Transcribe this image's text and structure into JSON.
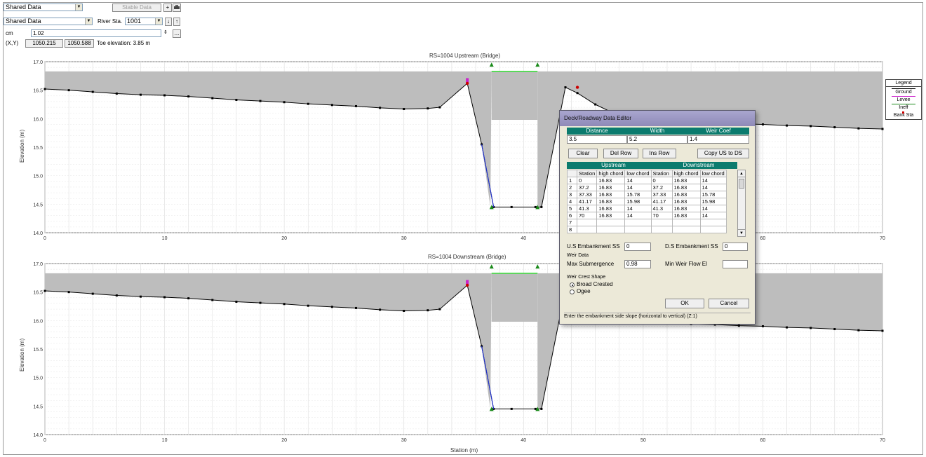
{
  "toolbar": {
    "combo1": "Shared Data",
    "combo2": "Shared Data",
    "combo3": "1001",
    "rs_disabled_btn": "Stable Data",
    "rs_label": "River Sta.",
    "left_label": "cm",
    "left_value": "1.02",
    "xy_label": "(X,Y)",
    "x_value": "1050.215",
    "y_value": "1050.588",
    "info_text": "Toe elevation: 3.85 m",
    "plus_btn": "+",
    "down_btn": "↓",
    "up_btn": "↑",
    "dots_btn": "..."
  },
  "top_chart": {
    "title": "RS=1004 Upstream (Bridge)",
    "ylabel": "Elevation (m)",
    "yticks": [
      "17.0",
      "16.5",
      "16.0",
      "15.5",
      "15.0",
      "14.5",
      "14.0"
    ],
    "xticks": [
      "0",
      "10",
      "20",
      "30",
      "40",
      "50",
      "60",
      "70"
    ]
  },
  "bottom_chart": {
    "title": "RS=1004 Downstream (Bridge)",
    "ylabel": "Elevation (m)",
    "xlabel": "Station (m)",
    "yticks": [
      "17.0",
      "16.5",
      "16.0",
      "15.5",
      "15.0",
      "14.5",
      "14.0"
    ],
    "xticks": [
      "0",
      "10",
      "20",
      "30",
      "40",
      "50",
      "60",
      "70"
    ]
  },
  "legend": {
    "title": "Legend",
    "items": [
      {
        "label": "Ground",
        "color": "#000000"
      },
      {
        "label": "Levee",
        "color": "#cc22cc"
      },
      {
        "label": "Ineff",
        "color": "#1a8a1a"
      },
      {
        "label": "Bank Sta",
        "color": "#cc0000"
      }
    ]
  },
  "dialog": {
    "title": "Deck/Roadway Data Editor",
    "hdr_distance": "Distance",
    "hdr_width": "Width",
    "hdr_weir": "Weir Coef",
    "val_distance": "3.5",
    "val_width": "5.2",
    "val_weir": "1.4",
    "btn_clear": "Clear",
    "btn_delrow": "Del Row",
    "btn_insrow": "Ins Row",
    "btn_copy": "Copy US to DS",
    "hdr_upstream": "Upstream",
    "hdr_downstream": "Downstream",
    "col_headers": [
      "",
      "Station",
      "high chord",
      "low chord",
      "Station",
      "high chord",
      "low chord"
    ],
    "rows": [
      [
        "1",
        "0",
        "16.83",
        "14",
        "0",
        "16.83",
        "14"
      ],
      [
        "2",
        "37.2",
        "16.83",
        "14",
        "37.2",
        "16.83",
        "14"
      ],
      [
        "3",
        "37.33",
        "16.83",
        "15.78",
        "37.33",
        "16.83",
        "15.78"
      ],
      [
        "4",
        "41.17",
        "16.83",
        "15.98",
        "41.17",
        "16.83",
        "15.98"
      ],
      [
        "5",
        "41.3",
        "16.83",
        "14",
        "41.3",
        "16.83",
        "14"
      ],
      [
        "6",
        "70",
        "16.83",
        "14",
        "70",
        "16.83",
        "14"
      ],
      [
        "7",
        "",
        "",
        "",
        "",
        "",
        ""
      ],
      [
        "8",
        "",
        "",
        "",
        "",
        "",
        ""
      ]
    ],
    "us_emb_label": "U.S Embankment SS",
    "us_emb_value": "0",
    "ds_emb_label": "D.S Embankment SS",
    "ds_emb_value": "0",
    "weir_data_label": "Weir Data",
    "max_sub_label": "Max Submergence",
    "max_sub_value": "0.98",
    "min_weir_label": "Min Weir Flow El",
    "min_weir_value": "",
    "weir_shape_label": "Weir Crest Shape",
    "radio_broad": "Broad Crested",
    "radio_ogee": "Ogee",
    "btn_ok": "OK",
    "btn_cancel": "Cancel",
    "status": "Enter the embankment side slope (horizontal to vertical) (Z:1)"
  },
  "chart_data": [
    {
      "type": "line",
      "title": "RS=1004 Upstream (Bridge)",
      "xlabel": "",
      "ylabel": "Elevation (m)",
      "xlim": [
        0,
        70
      ],
      "ylim": [
        14.0,
        17.0
      ],
      "grid": true,
      "legend": "right",
      "deck": {
        "high_chord": 16.83,
        "low_chord": 14.0,
        "opening_low_chord": 15.98,
        "opening_x": [
          37.33,
          41.17
        ]
      },
      "series": [
        {
          "name": "Ground",
          "x": [
            0,
            2,
            4,
            6,
            8,
            10,
            12,
            14,
            16,
            18,
            20,
            22,
            24,
            26,
            28,
            30,
            32,
            33,
            35.3,
            36.5,
            37.5,
            39,
            41,
            41.5,
            43.5,
            44.5,
            46,
            48,
            50,
            52,
            54,
            56,
            58,
            60,
            62,
            64,
            66,
            68,
            70
          ],
          "y": [
            16.52,
            16.5,
            16.47,
            16.44,
            16.42,
            16.41,
            16.39,
            16.36,
            16.33,
            16.31,
            16.29,
            16.26,
            16.24,
            16.22,
            16.19,
            16.17,
            16.18,
            16.2,
            16.62,
            15.55,
            14.45,
            14.45,
            14.45,
            14.45,
            16.55,
            16.45,
            16.25,
            16.05,
            15.98,
            15.96,
            15.94,
            15.93,
            15.91,
            15.9,
            15.88,
            15.87,
            15.85,
            15.83,
            15.82
          ]
        },
        {
          "name": "Levee",
          "x": [
            35.3
          ],
          "y": [
            16.65
          ]
        },
        {
          "name": "Ineff",
          "x": [
            37.33,
            41.17
          ],
          "y": [
            16.83,
            16.83
          ]
        },
        {
          "name": "Bank Sta",
          "x": [
            35.3,
            44.5
          ],
          "y": [
            16.62,
            16.55
          ]
        }
      ]
    },
    {
      "type": "line",
      "title": "RS=1004 Downstream (Bridge)",
      "xlabel": "Station (m)",
      "ylabel": "Elevation (m)",
      "xlim": [
        0,
        70
      ],
      "ylim": [
        14.0,
        17.0
      ],
      "grid": true,
      "legend": "right",
      "deck": {
        "high_chord": 16.83,
        "low_chord": 14.0,
        "opening_low_chord": 15.98,
        "opening_x": [
          37.33,
          41.17
        ]
      },
      "series": [
        {
          "name": "Ground",
          "x": [
            0,
            2,
            4,
            6,
            8,
            10,
            12,
            14,
            16,
            18,
            20,
            22,
            24,
            26,
            28,
            30,
            32,
            33,
            35.3,
            36.5,
            37.5,
            39,
            41,
            41.5,
            43.5,
            44.5,
            46,
            48,
            50,
            52,
            54,
            56,
            58,
            60,
            62,
            64,
            66,
            68,
            70
          ],
          "y": [
            16.52,
            16.5,
            16.47,
            16.44,
            16.42,
            16.41,
            16.39,
            16.36,
            16.33,
            16.31,
            16.29,
            16.26,
            16.24,
            16.22,
            16.19,
            16.17,
            16.18,
            16.2,
            16.62,
            15.55,
            14.45,
            14.45,
            14.45,
            14.45,
            16.55,
            16.45,
            16.25,
            16.05,
            15.98,
            15.96,
            15.94,
            15.93,
            15.91,
            15.9,
            15.88,
            15.87,
            15.85,
            15.83,
            15.82
          ]
        },
        {
          "name": "Levee",
          "x": [
            35.3
          ],
          "y": [
            16.65
          ]
        },
        {
          "name": "Ineff",
          "x": [
            37.33,
            41.17
          ],
          "y": [
            16.83,
            16.83
          ]
        },
        {
          "name": "Bank Sta",
          "x": [
            35.3,
            44.5
          ],
          "y": [
            16.62,
            16.55
          ]
        }
      ]
    }
  ]
}
